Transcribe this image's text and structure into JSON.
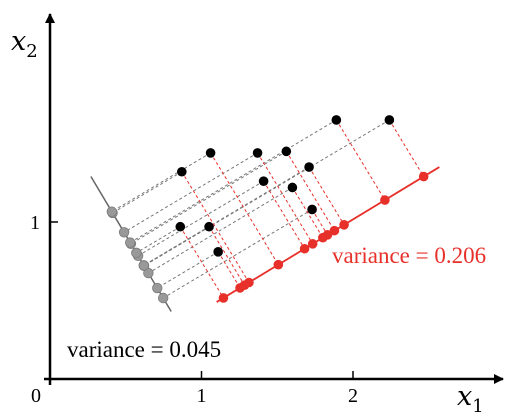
{
  "axes": {
    "x_label_base": "x",
    "x_label_sub": "1",
    "y_label_base": "x",
    "y_label_sub": "2",
    "origin_label": "0",
    "x_ticks": [
      {
        "value": 1,
        "label": "1"
      },
      {
        "value": 2,
        "label": "2"
      }
    ],
    "y_ticks": [
      {
        "value": 1,
        "label": "1"
      }
    ]
  },
  "annotations": {
    "red_variance": "variance = 0.206",
    "gray_variance": "variance = 0.045"
  },
  "colors": {
    "axis": "#000000",
    "points": "#000000",
    "red": "#e8302a",
    "gray_line": "#666666",
    "gray_point": "#999999",
    "connector": "#777777"
  },
  "points": [
    [
      0.87,
      1.32
    ],
    [
      1.06,
      1.44
    ],
    [
      1.37,
      1.44
    ],
    [
      1.56,
      1.45
    ],
    [
      1.89,
      1.65
    ],
    [
      2.24,
      1.65
    ],
    [
      1.41,
      1.26
    ],
    [
      1.71,
      1.35
    ],
    [
      1.6,
      1.22
    ],
    [
      1.73,
      1.08
    ],
    [
      0.86,
      0.97
    ],
    [
      1.05,
      0.97
    ],
    [
      1.11,
      0.81
    ]
  ],
  "red_line": {
    "p0": [
      1.1,
      0.49
    ],
    "p1": [
      2.57,
      1.35
    ]
  },
  "gray_line": {
    "p0": [
      0.27,
      1.29
    ],
    "p1": [
      0.8,
      0.43
    ]
  }
}
